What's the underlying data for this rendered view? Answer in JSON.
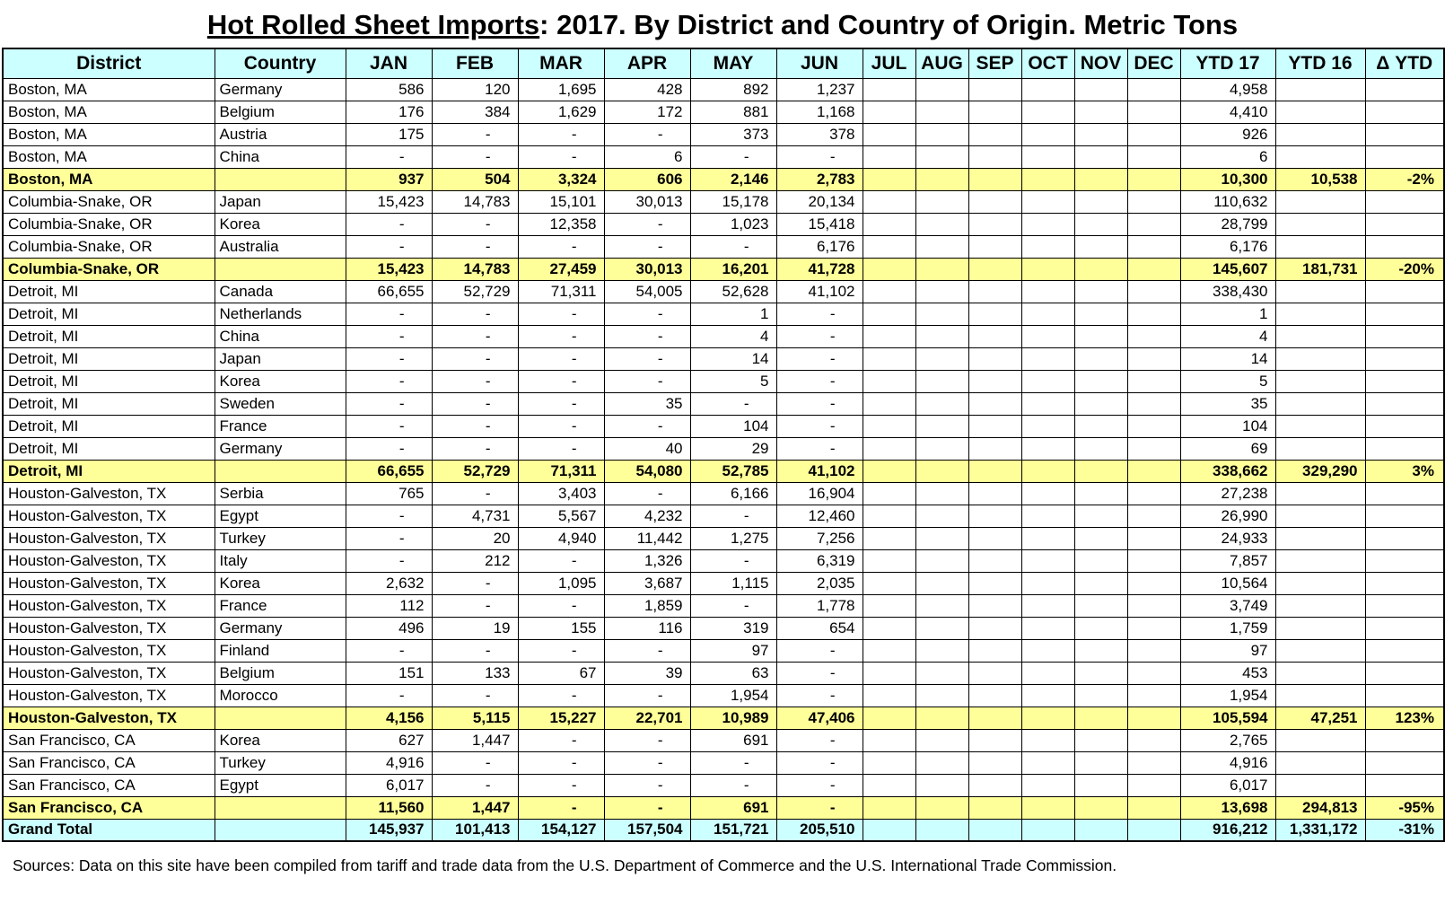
{
  "title": {
    "main": "Hot Rolled Sheet Imports",
    "suffix": ": 2017. By District and Country of Origin. Metric Tons"
  },
  "colors": {
    "header_bg": "#CCFFFF",
    "subtotal_bg": "#FFFF99",
    "grandtotal_bg": "#CCFFFF",
    "border": "#000000"
  },
  "table": {
    "columns": [
      "District",
      "Country",
      "JAN",
      "FEB",
      "MAR",
      "APR",
      "MAY",
      "JUN",
      "JUL",
      "AUG",
      "SEP",
      "OCT",
      "NOV",
      "DEC",
      "YTD 17",
      "YTD 16",
      "Δ YTD"
    ],
    "rows": [
      {
        "type": "data",
        "cells": [
          "Boston, MA",
          "Germany",
          "586",
          "120",
          "1,695",
          "428",
          "892",
          "1,237",
          "",
          "",
          "",
          "",
          "",
          "",
          "4,958",
          "",
          ""
        ]
      },
      {
        "type": "data",
        "cells": [
          "Boston, MA",
          "Belgium",
          "176",
          "384",
          "1,629",
          "172",
          "881",
          "1,168",
          "",
          "",
          "",
          "",
          "",
          "",
          "4,410",
          "",
          ""
        ]
      },
      {
        "type": "data",
        "cells": [
          "Boston, MA",
          "Austria",
          "175",
          "-",
          "-",
          "-",
          "373",
          "378",
          "",
          "",
          "",
          "",
          "",
          "",
          "926",
          "",
          ""
        ]
      },
      {
        "type": "data",
        "cells": [
          "Boston, MA",
          "China",
          "-",
          "-",
          "-",
          "6",
          "-",
          "-",
          "",
          "",
          "",
          "",
          "",
          "",
          "6",
          "",
          ""
        ]
      },
      {
        "type": "subtotal",
        "cells": [
          "Boston, MA",
          "",
          "937",
          "504",
          "3,324",
          "606",
          "2,146",
          "2,783",
          "",
          "",
          "",
          "",
          "",
          "",
          "10,300",
          "10,538",
          "-2%"
        ]
      },
      {
        "type": "data",
        "cells": [
          "Columbia-Snake, OR",
          "Japan",
          "15,423",
          "14,783",
          "15,101",
          "30,013",
          "15,178",
          "20,134",
          "",
          "",
          "",
          "",
          "",
          "",
          "110,632",
          "",
          ""
        ]
      },
      {
        "type": "data",
        "cells": [
          "Columbia-Snake, OR",
          "Korea",
          "-",
          "-",
          "12,358",
          "-",
          "1,023",
          "15,418",
          "",
          "",
          "",
          "",
          "",
          "",
          "28,799",
          "",
          ""
        ]
      },
      {
        "type": "data",
        "cells": [
          "Columbia-Snake, OR",
          "Australia",
          "-",
          "-",
          "-",
          "-",
          "-",
          "6,176",
          "",
          "",
          "",
          "",
          "",
          "",
          "6,176",
          "",
          ""
        ]
      },
      {
        "type": "subtotal",
        "cells": [
          "Columbia-Snake, OR",
          "",
          "15,423",
          "14,783",
          "27,459",
          "30,013",
          "16,201",
          "41,728",
          "",
          "",
          "",
          "",
          "",
          "",
          "145,607",
          "181,731",
          "-20%"
        ]
      },
      {
        "type": "data",
        "cells": [
          "Detroit, MI",
          "Canada",
          "66,655",
          "52,729",
          "71,311",
          "54,005",
          "52,628",
          "41,102",
          "",
          "",
          "",
          "",
          "",
          "",
          "338,430",
          "",
          ""
        ]
      },
      {
        "type": "data",
        "cells": [
          "Detroit, MI",
          "Netherlands",
          "-",
          "-",
          "-",
          "-",
          "1",
          "-",
          "",
          "",
          "",
          "",
          "",
          "",
          "1",
          "",
          ""
        ]
      },
      {
        "type": "data",
        "cells": [
          "Detroit, MI",
          "China",
          "-",
          "-",
          "-",
          "-",
          "4",
          "-",
          "",
          "",
          "",
          "",
          "",
          "",
          "4",
          "",
          ""
        ]
      },
      {
        "type": "data",
        "cells": [
          "Detroit, MI",
          "Japan",
          "-",
          "-",
          "-",
          "-",
          "14",
          "-",
          "",
          "",
          "",
          "",
          "",
          "",
          "14",
          "",
          ""
        ]
      },
      {
        "type": "data",
        "cells": [
          "Detroit, MI",
          "Korea",
          "-",
          "-",
          "-",
          "-",
          "5",
          "-",
          "",
          "",
          "",
          "",
          "",
          "",
          "5",
          "",
          ""
        ]
      },
      {
        "type": "data",
        "cells": [
          "Detroit, MI",
          "Sweden",
          "-",
          "-",
          "-",
          "35",
          "-",
          "-",
          "",
          "",
          "",
          "",
          "",
          "",
          "35",
          "",
          ""
        ]
      },
      {
        "type": "data",
        "cells": [
          "Detroit, MI",
          "France",
          "-",
          "-",
          "-",
          "-",
          "104",
          "-",
          "",
          "",
          "",
          "",
          "",
          "",
          "104",
          "",
          ""
        ]
      },
      {
        "type": "data",
        "cells": [
          "Detroit, MI",
          "Germany",
          "-",
          "-",
          "-",
          "40",
          "29",
          "-",
          "",
          "",
          "",
          "",
          "",
          "",
          "69",
          "",
          ""
        ]
      },
      {
        "type": "subtotal",
        "cells": [
          "Detroit, MI",
          "",
          "66,655",
          "52,729",
          "71,311",
          "54,080",
          "52,785",
          "41,102",
          "",
          "",
          "",
          "",
          "",
          "",
          "338,662",
          "329,290",
          "3%"
        ]
      },
      {
        "type": "data",
        "cells": [
          "Houston-Galveston, TX",
          "Serbia",
          "765",
          "-",
          "3,403",
          "-",
          "6,166",
          "16,904",
          "",
          "",
          "",
          "",
          "",
          "",
          "27,238",
          "",
          ""
        ]
      },
      {
        "type": "data",
        "cells": [
          "Houston-Galveston, TX",
          "Egypt",
          "-",
          "4,731",
          "5,567",
          "4,232",
          "-",
          "12,460",
          "",
          "",
          "",
          "",
          "",
          "",
          "26,990",
          "",
          ""
        ]
      },
      {
        "type": "data",
        "cells": [
          "Houston-Galveston, TX",
          "Turkey",
          "-",
          "20",
          "4,940",
          "11,442",
          "1,275",
          "7,256",
          "",
          "",
          "",
          "",
          "",
          "",
          "24,933",
          "",
          ""
        ]
      },
      {
        "type": "data",
        "cells": [
          "Houston-Galveston, TX",
          "Italy",
          "-",
          "212",
          "-",
          "1,326",
          "-",
          "6,319",
          "",
          "",
          "",
          "",
          "",
          "",
          "7,857",
          "",
          ""
        ]
      },
      {
        "type": "data",
        "cells": [
          "Houston-Galveston, TX",
          "Korea",
          "2,632",
          "-",
          "1,095",
          "3,687",
          "1,115",
          "2,035",
          "",
          "",
          "",
          "",
          "",
          "",
          "10,564",
          "",
          ""
        ]
      },
      {
        "type": "data",
        "cells": [
          "Houston-Galveston, TX",
          "France",
          "112",
          "-",
          "-",
          "1,859",
          "-",
          "1,778",
          "",
          "",
          "",
          "",
          "",
          "",
          "3,749",
          "",
          ""
        ]
      },
      {
        "type": "data",
        "cells": [
          "Houston-Galveston, TX",
          "Germany",
          "496",
          "19",
          "155",
          "116",
          "319",
          "654",
          "",
          "",
          "",
          "",
          "",
          "",
          "1,759",
          "",
          ""
        ]
      },
      {
        "type": "data",
        "cells": [
          "Houston-Galveston, TX",
          "Finland",
          "-",
          "-",
          "-",
          "-",
          "97",
          "-",
          "",
          "",
          "",
          "",
          "",
          "",
          "97",
          "",
          ""
        ]
      },
      {
        "type": "data",
        "cells": [
          "Houston-Galveston, TX",
          "Belgium",
          "151",
          "133",
          "67",
          "39",
          "63",
          "-",
          "",
          "",
          "",
          "",
          "",
          "",
          "453",
          "",
          ""
        ]
      },
      {
        "type": "data",
        "cells": [
          "Houston-Galveston, TX",
          "Morocco",
          "-",
          "-",
          "-",
          "-",
          "1,954",
          "-",
          "",
          "",
          "",
          "",
          "",
          "",
          "1,954",
          "",
          ""
        ]
      },
      {
        "type": "subtotal",
        "cells": [
          "Houston-Galveston, TX",
          "",
          "4,156",
          "5,115",
          "15,227",
          "22,701",
          "10,989",
          "47,406",
          "",
          "",
          "",
          "",
          "",
          "",
          "105,594",
          "47,251",
          "123%"
        ]
      },
      {
        "type": "data",
        "cells": [
          "San Francisco, CA",
          "Korea",
          "627",
          "1,447",
          "-",
          "-",
          "691",
          "-",
          "",
          "",
          "",
          "",
          "",
          "",
          "2,765",
          "",
          ""
        ]
      },
      {
        "type": "data",
        "cells": [
          "San Francisco, CA",
          "Turkey",
          "4,916",
          "-",
          "-",
          "-",
          "-",
          "-",
          "",
          "",
          "",
          "",
          "",
          "",
          "4,916",
          "",
          ""
        ]
      },
      {
        "type": "data",
        "cells": [
          "San Francisco, CA",
          "Egypt",
          "6,017",
          "-",
          "-",
          "-",
          "-",
          "-",
          "",
          "",
          "",
          "",
          "",
          "",
          "6,017",
          "",
          ""
        ]
      },
      {
        "type": "subtotal",
        "cells": [
          "San Francisco, CA",
          "",
          "11,560",
          "1,447",
          "-",
          "-",
          "691",
          "-",
          "",
          "",
          "",
          "",
          "",
          "",
          "13,698",
          "294,813",
          "-95%"
        ]
      },
      {
        "type": "grandtotal",
        "cells": [
          "Grand Total",
          "",
          "145,937",
          "101,413",
          "154,127",
          "157,504",
          "151,721",
          "205,510",
          "",
          "",
          "",
          "",
          "",
          "",
          "916,212",
          "1,331,172",
          "-31%"
        ]
      }
    ]
  },
  "footer": "Sources: Data on this site have been compiled from tariff and trade data from the U.S. Department of Commerce and the U.S. International Trade Commission."
}
